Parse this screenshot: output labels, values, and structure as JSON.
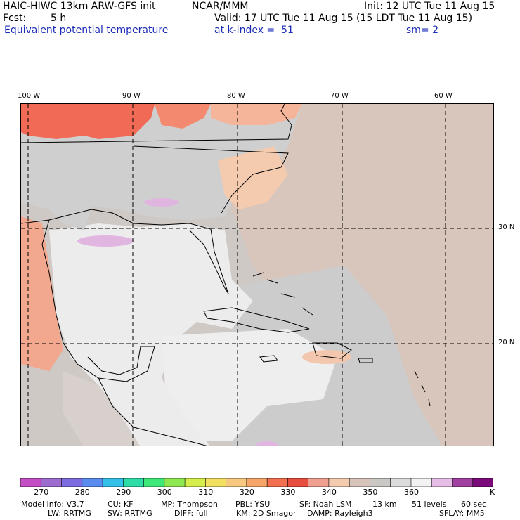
{
  "header": {
    "model": "HAIC-HIWC 13km ARW-GFS init",
    "org": "NCAR/MMM",
    "init": "Init: 12 UTC Tue 11 Aug 15",
    "fcst_label": "Fcst:",
    "fcst_value": "5 h",
    "valid": "Valid: 17 UTC Tue 11 Aug 15 (15 LDT Tue 11 Aug 15)",
    "field": "Equivalent potential temperature",
    "level": "at k-index =  51",
    "smoothing": "sm= 2"
  },
  "map": {
    "lon_labels": [
      "100 W",
      "90 W",
      "80 W",
      "70 W",
      "60 W"
    ],
    "lat_labels": [
      "30 N",
      "20 N"
    ]
  },
  "colorbar": {
    "colors": [
      "#c44ec4",
      "#9c6ccf",
      "#7c6cdf",
      "#5a8cf0",
      "#32c0e8",
      "#2edca8",
      "#3ee878",
      "#8ee850",
      "#d6ee4c",
      "#f2e060",
      "#f7c880",
      "#f7a66a",
      "#f27050",
      "#e84e40",
      "#f0a090",
      "#f5cbb0",
      "#d9c4bc",
      "#cbc7c4",
      "#dcdcdc",
      "#f2f2f2",
      "#e6bde6",
      "#a040a0",
      "#7a0a7a"
    ],
    "labels": [
      "270",
      "280",
      "290",
      "300",
      "310",
      "320",
      "330",
      "340",
      "350",
      "360"
    ],
    "units": "K"
  },
  "footer": {
    "line1": [
      "Model Info: V3.7",
      "CU: KF",
      "MP: Thompson",
      "PBL: YSU",
      "SF: Noah LSM",
      "13 km",
      "51 levels",
      "60 sec"
    ],
    "line2": [
      "LW: RRTMG",
      "SW: RRTMG",
      "DIFF: full",
      "KM: 2D Smagor",
      "DAMP: Rayleigh3",
      "SFLAY: MM5"
    ]
  }
}
